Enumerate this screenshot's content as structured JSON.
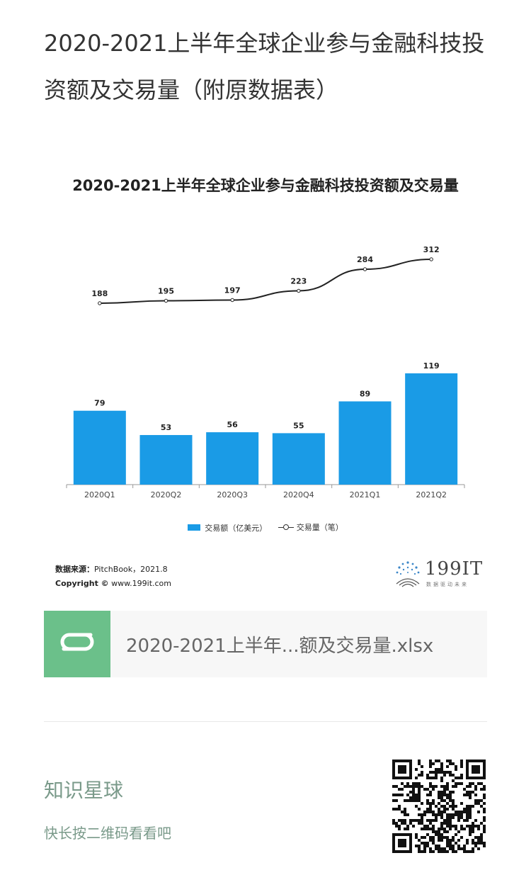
{
  "page": {
    "title": "2020-2021上半年全球企业参与金融科技投资额及交易量（附原数据表）"
  },
  "chart_data": {
    "type": "bar",
    "title": "2020-2021上半年全球企业参与金融科技投资额及交易量",
    "categories": [
      "2020Q1",
      "2020Q2",
      "2020Q3",
      "2020Q4",
      "2021Q1",
      "2021Q2"
    ],
    "series": [
      {
        "name": "交易额（亿美元）",
        "type": "bar",
        "values": [
          79,
          53,
          56,
          55,
          89,
          119
        ],
        "color": "#1a9be6"
      },
      {
        "name": "交易量（笔）",
        "type": "line",
        "values": [
          188,
          195,
          197,
          223,
          284,
          312
        ],
        "color": "#222222"
      }
    ],
    "legend": {
      "bar_label": "交易额（亿美元）",
      "line_label": "交易量（笔）",
      "position": "bottom"
    },
    "grid": false
  },
  "source": {
    "label": "数据来源：",
    "text": "PitchBook，2021.8",
    "copyright_label": "Copyright ©",
    "copyright_text": " www.199it.com"
  },
  "logo": {
    "text": "199IT",
    "sub": "数据驱动未来"
  },
  "file": {
    "name": "2020-2021上半年...额及交易量.xlsx",
    "icon": "wps-sheet-icon"
  },
  "planet": {
    "title": "知识星球",
    "subtitle": "快长按二维码看看吧"
  },
  "colors": {
    "bar": "#1a9be6",
    "file_icon": "#6bc08a",
    "planet_text": "#7a9a8a"
  }
}
